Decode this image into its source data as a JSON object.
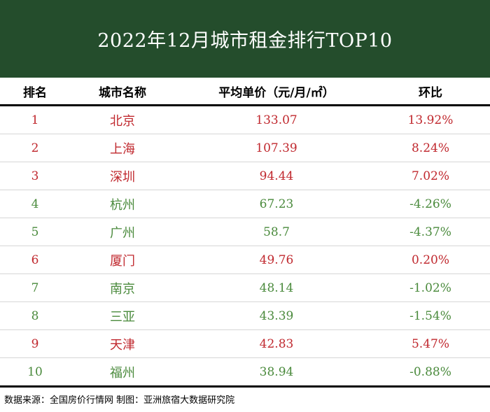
{
  "title": "2022年12月城市租金排行TOP10",
  "colors": {
    "banner": "#244d2c",
    "up": "#c0282e",
    "down": "#4a8a3c"
  },
  "columns": [
    "排名",
    "城市名称",
    "平均单价（元/月/㎡）",
    "环比"
  ],
  "rows": [
    {
      "rank": "1",
      "city": "北京",
      "price": "133.07",
      "change": "13.92%",
      "trend": "up"
    },
    {
      "rank": "2",
      "city": "上海",
      "price": "107.39",
      "change": "8.24%",
      "trend": "up"
    },
    {
      "rank": "3",
      "city": "深圳",
      "price": "94.44",
      "change": "7.02%",
      "trend": "up"
    },
    {
      "rank": "4",
      "city": "杭州",
      "price": "67.23",
      "change": "-4.26%",
      "trend": "down"
    },
    {
      "rank": "5",
      "city": "广州",
      "price": "58.7",
      "change": "-4.37%",
      "trend": "down"
    },
    {
      "rank": "6",
      "city": "厦门",
      "price": "49.76",
      "change": "0.20%",
      "trend": "up"
    },
    {
      "rank": "7",
      "city": "南京",
      "price": "48.14",
      "change": "-1.02%",
      "trend": "down"
    },
    {
      "rank": "8",
      "city": "三亚",
      "price": "43.39",
      "change": "-1.54%",
      "trend": "down"
    },
    {
      "rank": "9",
      "city": "天津",
      "price": "42.83",
      "change": "5.47%",
      "trend": "up"
    },
    {
      "rank": "10",
      "city": "福州",
      "price": "38.94",
      "change": "-0.88%",
      "trend": "down"
    }
  ],
  "footer": "数据来源：全国房价行情网 制图：亚洲旅宿大数据研究院"
}
